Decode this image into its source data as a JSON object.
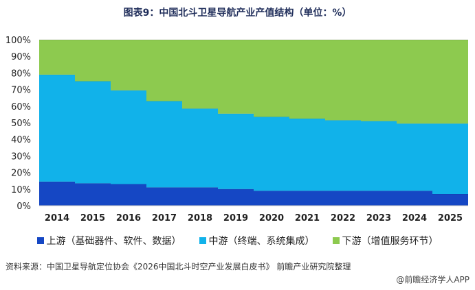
{
  "header": {
    "title": "图表9：中国北斗卫星导航产业产值结构（单位：%）"
  },
  "chart_data": {
    "type": "area",
    "stacked": true,
    "step": true,
    "categories": [
      "2014",
      "2015",
      "2016",
      "2017",
      "2018",
      "2019",
      "2020",
      "2021",
      "2022",
      "2023",
      "2024",
      "2025"
    ],
    "series": [
      {
        "name": "上游（基础器件、软件、数据）",
        "color": "#1547c4",
        "values": [
          14.5,
          13.5,
          13,
          11,
          11,
          10,
          9,
          9,
          9,
          9,
          9,
          7
        ]
      },
      {
        "name": "中游（终端、系统集成）",
        "color": "#11b2ea",
        "values": [
          64.5,
          61.5,
          56.5,
          52,
          47.5,
          45.5,
          44.5,
          43.5,
          42.5,
          42,
          40.5,
          42.5
        ]
      },
      {
        "name": "下游（增值服务环节）",
        "color": "#8dca4f",
        "values": [
          21,
          25,
          30.5,
          37,
          41.5,
          44.5,
          46.5,
          47.5,
          48.5,
          49,
          50.5,
          50.5
        ]
      }
    ],
    "ylim": [
      0,
      100
    ],
    "yticks": [
      "0%",
      "10%",
      "20%",
      "30%",
      "40%",
      "50%",
      "60%",
      "70%",
      "80%",
      "90%",
      "100%"
    ],
    "legend_position": "bottom",
    "grid": false
  },
  "source": "资料来源：中国卫星导航定位协会《2026中国北斗时空产业发展白皮书》 前瞻产业研究院整理",
  "brand": "@前瞻经济学人APP"
}
